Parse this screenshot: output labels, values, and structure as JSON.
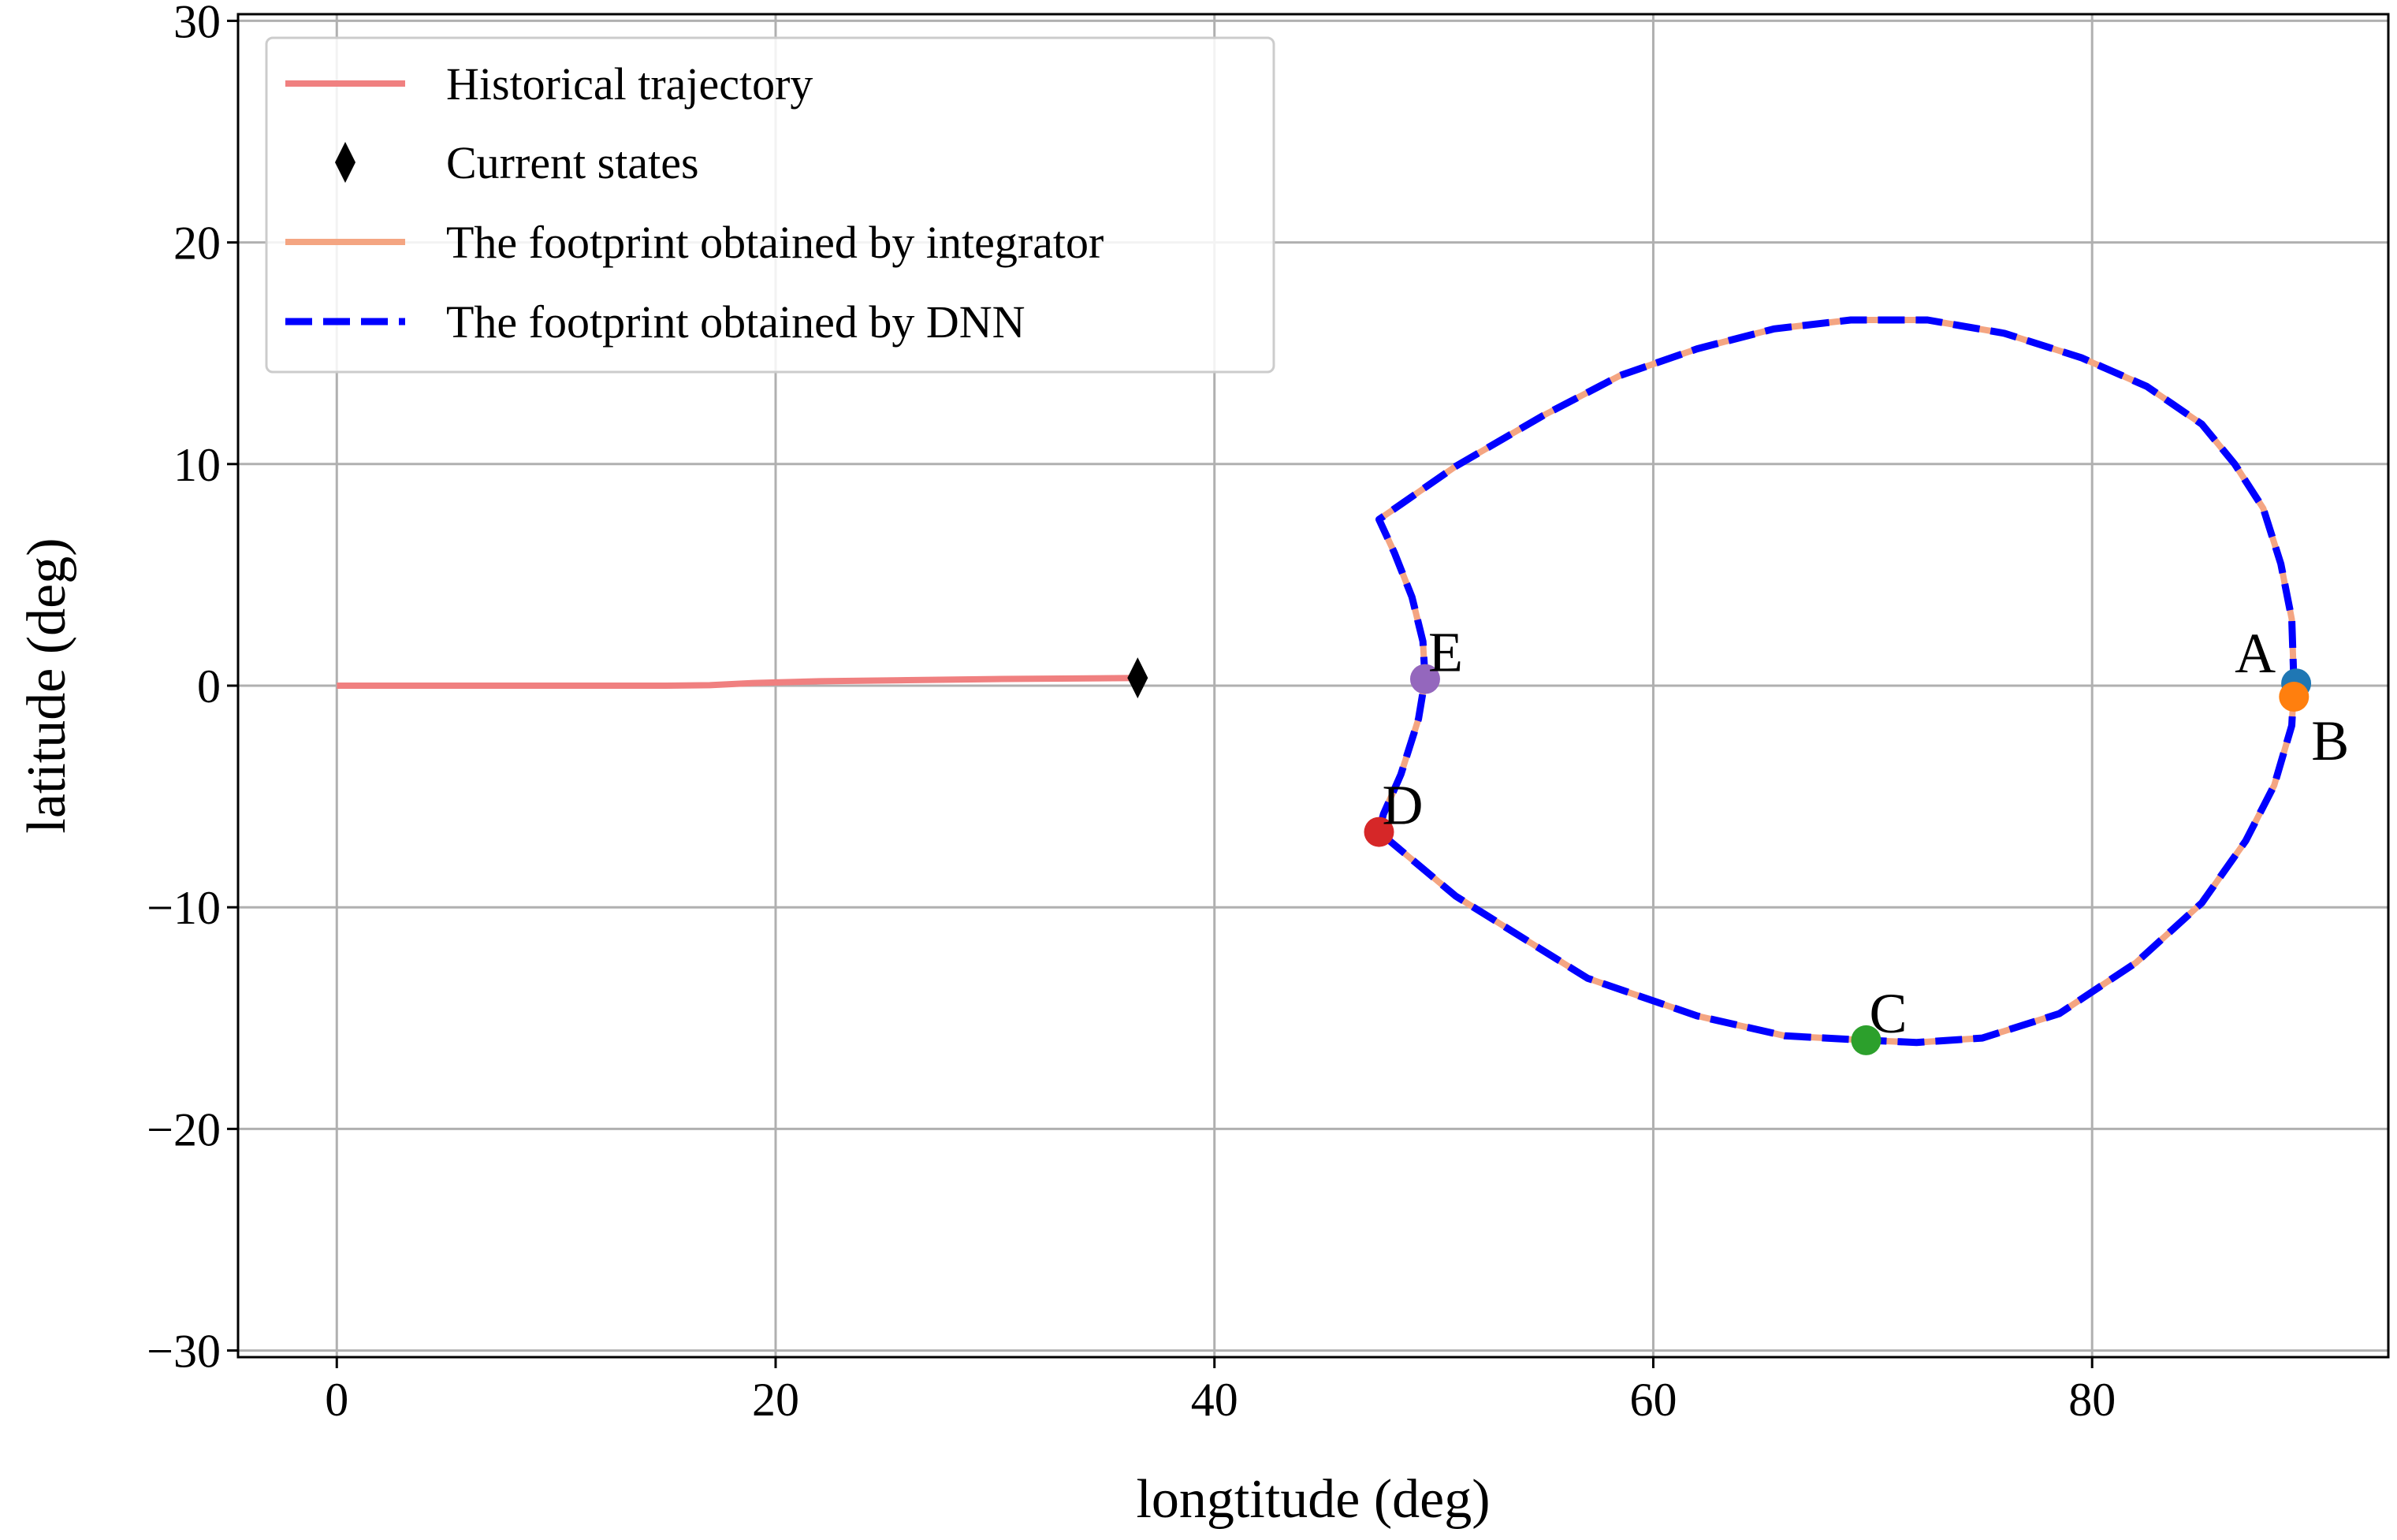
{
  "chart_data": {
    "type": "line",
    "title": "",
    "xlabel": "longtitude (deg)",
    "ylabel": "latitude (deg)",
    "xlim": [
      -4.5,
      93.5
    ],
    "ylim": [
      -30.3,
      30.3
    ],
    "xticks": [
      0,
      20,
      40,
      60,
      80
    ],
    "yticks": [
      30,
      20,
      10,
      0,
      -10,
      -20,
      -30
    ],
    "xtick_labels": [
      "0",
      "20",
      "40",
      "60",
      "80"
    ],
    "ytick_labels": [
      "30",
      "20",
      "10",
      "0",
      "−10",
      "−20",
      "−30"
    ],
    "grid": true,
    "legend_position": "top-left",
    "series": [
      {
        "name": "Historical trajectory",
        "style": "solid",
        "color": "#f08080",
        "x": [
          0,
          5,
          10,
          15,
          17,
          19,
          22,
          26,
          30,
          33,
          36.5
        ],
        "y": [
          0,
          0,
          0,
          0,
          0.02,
          0.12,
          0.2,
          0.25,
          0.3,
          0.32,
          0.35
        ]
      },
      {
        "name": "Current states",
        "style": "marker",
        "marker": "thin_diamond",
        "color": "#000000",
        "x": [
          36.5
        ],
        "y": [
          0.35
        ]
      },
      {
        "name": "The footprint obtained by integrator",
        "style": "solid",
        "color": "#f4a582",
        "x": [
          89.2,
          89.1,
          88.6,
          87.8,
          86.5,
          85,
          82.5,
          79.5,
          76,
          72.5,
          69,
          65.5,
          62,
          58.5,
          55,
          51,
          47.5,
          48.2,
          49,
          49.5,
          49.6,
          49.3,
          48.5,
          47.7,
          47.5,
          51,
          57,
          62,
          66,
          69.7,
          72,
          75,
          78.5,
          82,
          85,
          87,
          88.3,
          89.1,
          89.2
        ],
        "y": [
          0,
          3,
          5.5,
          8,
          10,
          11.8,
          13.5,
          14.8,
          15.9,
          16.5,
          16.5,
          16.1,
          15.2,
          14,
          12.2,
          9.9,
          7.5,
          6,
          4,
          2,
          0.3,
          -1.5,
          -4,
          -5.8,
          -6.6,
          -9.5,
          -13.2,
          -14.9,
          -15.8,
          -16,
          -16.1,
          -15.9,
          -14.8,
          -12.5,
          -9.8,
          -7,
          -4.5,
          -1.8,
          0
        ]
      },
      {
        "name": "The footprint obtained by DNN",
        "style": "dashed",
        "color": "#0000ff",
        "x": [
          89.2,
          89.1,
          88.6,
          87.8,
          86.5,
          85,
          82.5,
          79.5,
          76,
          72.5,
          69,
          65.5,
          62,
          58.5,
          55,
          51,
          47.5,
          48.2,
          49,
          49.5,
          49.6,
          49.3,
          48.5,
          47.7,
          47.5,
          51,
          57,
          62,
          66,
          69.7,
          72,
          75,
          78.5,
          82,
          85,
          87,
          88.3,
          89.1,
          89.2
        ],
        "y": [
          0,
          3,
          5.5,
          8,
          10,
          11.8,
          13.5,
          14.8,
          15.9,
          16.5,
          16.5,
          16.1,
          15.2,
          14,
          12.2,
          9.9,
          7.5,
          6,
          4,
          2,
          0.3,
          -1.5,
          -4,
          -5.8,
          -6.6,
          -9.5,
          -13.2,
          -14.9,
          -15.8,
          -16,
          -16.1,
          -15.9,
          -14.8,
          -12.5,
          -9.8,
          -7,
          -4.5,
          -1.8,
          0
        ]
      }
    ],
    "points": [
      {
        "label": "A",
        "x": 89.3,
        "y": 0.1,
        "color": "#1f77b4",
        "label_anchor": "left-above"
      },
      {
        "label": "B",
        "x": 89.2,
        "y": -0.5,
        "color": "#ff7f0e",
        "label_anchor": "right-below"
      },
      {
        "label": "C",
        "x": 69.7,
        "y": -16.0,
        "color": "#2ca02c",
        "label_anchor": "right-above"
      },
      {
        "label": "D",
        "x": 47.5,
        "y": -6.6,
        "color": "#d62728",
        "label_anchor": "right-above"
      },
      {
        "label": "E",
        "x": 49.6,
        "y": 0.3,
        "color": "#9467bd",
        "label_anchor": "right-above"
      }
    ]
  }
}
